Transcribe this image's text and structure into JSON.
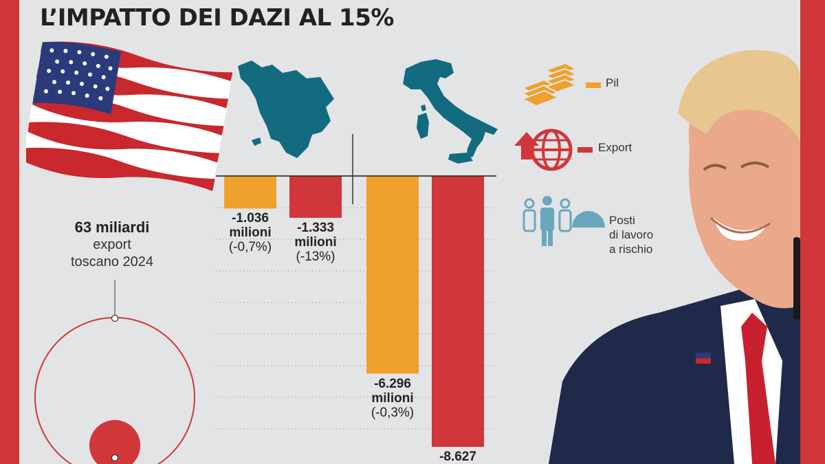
{
  "title": "L’IMPATTO DEI DAZI AL 15%",
  "export_info": {
    "value": "63 miliardi",
    "desc_line1": "export",
    "desc_line2": "toscano 2024"
  },
  "legend": {
    "items": [
      {
        "label": "Pil",
        "color": "#eea12c",
        "icon": "stacked-coins-icon"
      },
      {
        "label": "Export",
        "color": "#d0363a",
        "icon": "globe-export-icon"
      },
      {
        "label_lines": [
          "Posti",
          "di lavoro",
          "a rischio"
        ],
        "color": "#6aa7bd",
        "icon": "workers-icon"
      }
    ]
  },
  "colors": {
    "pil": "#eea12c",
    "export": "#d0363a",
    "map": "#136b80",
    "background": "#e3e4e6",
    "frame": "#d0363a"
  },
  "chart_data": {
    "type": "bar",
    "title": "L’IMPATTO DEI DAZI AL 15%",
    "groups": [
      "Toscana",
      "Italia"
    ],
    "series": [
      {
        "name": "Pil",
        "values": [
          -1036,
          -6296
        ]
      },
      {
        "name": "Export",
        "values": [
          -1333,
          -8627
        ]
      }
    ],
    "bars": [
      {
        "series": "Pil",
        "region": "Toscana",
        "value": -1036,
        "label_lines": [
          "-1.036",
          "milioni",
          "(-0,7%)"
        ]
      },
      {
        "series": "Export",
        "region": "Toscana",
        "value": -1333,
        "label_lines": [
          "-1.333",
          "milioni",
          "(-13%)"
        ]
      },
      {
        "series": "Pil",
        "region": "Italia",
        "value": -6296,
        "label_lines": [
          "-6.296",
          "milioni",
          "(-0,3%)"
        ]
      },
      {
        "series": "Export",
        "region": "Italia",
        "value": -8627,
        "label_lines": [
          "-8.627"
        ]
      }
    ],
    "xlabel": "",
    "ylabel": "",
    "ylim": [
      -8627,
      0
    ],
    "grid": true,
    "legend_position": "right"
  },
  "bubble_chart": {
    "outer_label": "63 miliardi export toscano 2024"
  }
}
